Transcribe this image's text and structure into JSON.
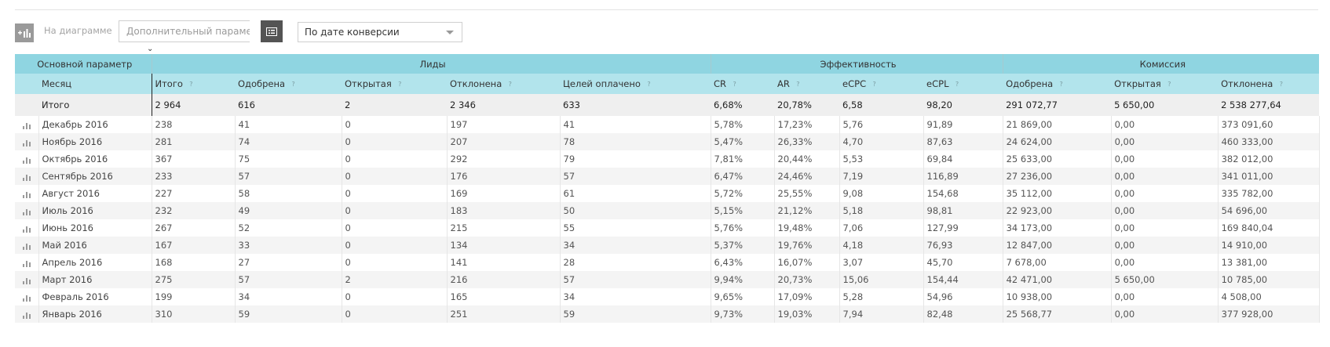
{
  "toolbar": {
    "on_chart_label": "На диаграмме",
    "param_placeholder": "Дополнительный параметр",
    "date_select_value": "По дате конверсии"
  },
  "header": {
    "main_param": "Основной параметр",
    "groups": {
      "leads": "Лиды",
      "efficiency": "Эффективность",
      "commission": "Комиссия"
    },
    "columns": {
      "month": "Месяц",
      "total": "Итого",
      "approved": "Одобрена",
      "open": "Открытая",
      "rejected": "Отклонена",
      "paid_goals": "Целей оплачено",
      "cr": "CR",
      "ar": "AR",
      "ecpc": "eCPC",
      "ecpl": "eCPL",
      "c_approved": "Одобрена",
      "c_open": "Открытая",
      "c_rejected": "Отклонена"
    },
    "help_mark": "?"
  },
  "totals": {
    "label": "Итого",
    "values": [
      "2 964",
      "616",
      "2",
      "2 346",
      "633",
      "6,68%",
      "20,78%",
      "6,58",
      "98,20",
      "291 072,77",
      "5 650,00",
      "2 538 277,64"
    ]
  },
  "rows": [
    {
      "month": "Декабрь 2016",
      "values": [
        "238",
        "41",
        "0",
        "197",
        "41",
        "5,78%",
        "17,23%",
        "5,76",
        "91,89",
        "21 869,00",
        "0,00",
        "373 091,60"
      ]
    },
    {
      "month": "Ноябрь 2016",
      "values": [
        "281",
        "74",
        "0",
        "207",
        "78",
        "5,47%",
        "26,33%",
        "4,70",
        "87,63",
        "24 624,00",
        "0,00",
        "460 333,00"
      ]
    },
    {
      "month": "Октябрь 2016",
      "values": [
        "367",
        "75",
        "0",
        "292",
        "79",
        "7,81%",
        "20,44%",
        "5,53",
        "69,84",
        "25 633,00",
        "0,00",
        "382 012,00"
      ]
    },
    {
      "month": "Сентябрь 2016",
      "values": [
        "233",
        "57",
        "0",
        "176",
        "57",
        "6,47%",
        "24,46%",
        "7,19",
        "116,89",
        "27 236,00",
        "0,00",
        "341 011,00"
      ]
    },
    {
      "month": "Август 2016",
      "values": [
        "227",
        "58",
        "0",
        "169",
        "61",
        "5,72%",
        "25,55%",
        "9,08",
        "154,68",
        "35 112,00",
        "0,00",
        "335 782,00"
      ]
    },
    {
      "month": "Июль 2016",
      "values": [
        "232",
        "49",
        "0",
        "183",
        "50",
        "5,15%",
        "21,12%",
        "5,18",
        "98,81",
        "22 923,00",
        "0,00",
        "54 696,00"
      ]
    },
    {
      "month": "Июнь 2016",
      "values": [
        "267",
        "52",
        "0",
        "215",
        "55",
        "5,76%",
        "19,48%",
        "7,06",
        "127,99",
        "34 173,00",
        "0,00",
        "169 840,04"
      ]
    },
    {
      "month": "Май 2016",
      "values": [
        "167",
        "33",
        "0",
        "134",
        "34",
        "5,37%",
        "19,76%",
        "4,18",
        "76,93",
        "12 847,00",
        "0,00",
        "14 910,00"
      ]
    },
    {
      "month": "Апрель 2016",
      "values": [
        "168",
        "27",
        "0",
        "141",
        "28",
        "6,43%",
        "16,07%",
        "3,07",
        "45,70",
        "7 678,00",
        "0,00",
        "13 381,00"
      ]
    },
    {
      "month": "Март 2016",
      "values": [
        "275",
        "57",
        "2",
        "216",
        "57",
        "9,94%",
        "20,73%",
        "15,06",
        "154,44",
        "42 471,00",
        "5 650,00",
        "10 785,00"
      ]
    },
    {
      "month": "Февраль 2016",
      "values": [
        "199",
        "34",
        "0",
        "165",
        "34",
        "9,65%",
        "17,09%",
        "5,28",
        "54,96",
        "10 938,00",
        "0,00",
        "4 508,00"
      ]
    },
    {
      "month": "Январь 2016",
      "values": [
        "310",
        "59",
        "0",
        "251",
        "59",
        "9,73%",
        "19,03%",
        "7,94",
        "82,48",
        "25 568,77",
        "0,00",
        "377 928,00"
      ]
    }
  ]
}
